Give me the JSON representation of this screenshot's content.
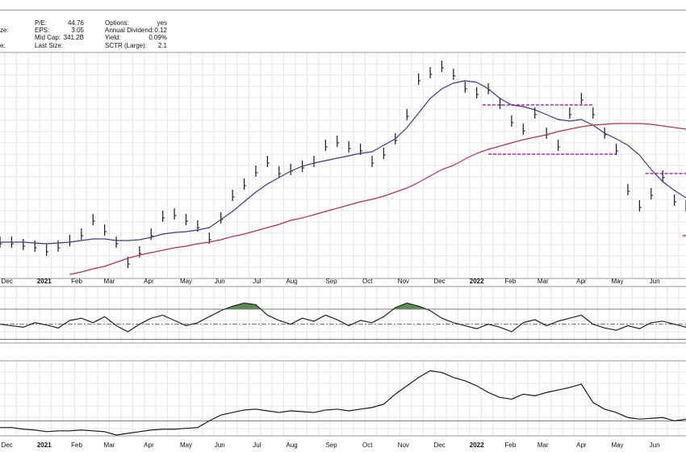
{
  "header": {
    "fields": [
      {
        "label": "P/E:",
        "value": "44.76"
      },
      {
        "label": "Options:",
        "value": "yes"
      },
      {
        "label": "EPS:",
        "value": "3.05"
      },
      {
        "label": "Annual Dividend:",
        "value": "0.12"
      },
      {
        "label": "Mid Cap:",
        "value": "341.2B"
      },
      {
        "label": "Yield:",
        "value": "0.09%"
      },
      {
        "label": "Last Size:",
        "value": ""
      },
      {
        "label": "SCTR (Large):",
        "value": "2.1"
      }
    ],
    "clipped": [
      "ze:",
      "e:"
    ]
  },
  "chart_data": [
    {
      "type": "line",
      "xlim": [
        0,
        59
      ],
      "ylim": [
        0,
        280
      ],
      "xticks": [
        {
          "value": 0.6,
          "label": "Dec"
        },
        {
          "value": 3.8,
          "label": "2021"
        },
        {
          "value": 6.6,
          "label": "Feb"
        },
        {
          "value": 9.4,
          "label": "Mar"
        },
        {
          "value": 12.8,
          "label": "Apr"
        },
        {
          "value": 16,
          "label": "May"
        },
        {
          "value": 18.9,
          "label": "Jun"
        },
        {
          "value": 22.1,
          "label": "Jul"
        },
        {
          "value": 25.1,
          "label": "Aug"
        },
        {
          "value": 28.5,
          "label": "Sep"
        },
        {
          "value": 31.6,
          "label": "Oct"
        },
        {
          "value": 34.7,
          "label": "Nov"
        },
        {
          "value": 37.8,
          "label": "Dec"
        },
        {
          "value": 41,
          "label": "2022"
        },
        {
          "value": 43.9,
          "label": "Feb"
        },
        {
          "value": 46.7,
          "label": "Mar"
        },
        {
          "value": 50,
          "label": "Apr"
        },
        {
          "value": 53.1,
          "label": "May"
        },
        {
          "value": 56.3,
          "label": "Jun"
        }
      ],
      "series": [
        {
          "style": "bars",
          "color": "#1a1a1a",
          "values": [
            45,
            45,
            42,
            40,
            35,
            40,
            47,
            55,
            73,
            60,
            45,
            20,
            33,
            55,
            77,
            80,
            73,
            65,
            50,
            75,
            103,
            117,
            133,
            145,
            132,
            135,
            139,
            145,
            165,
            170,
            163,
            160,
            145,
            155,
            173,
            203,
            247,
            255,
            263,
            253,
            237,
            230,
            235,
            217,
            195,
            185,
            205,
            180,
            165,
            205,
            223,
            205,
            180,
            160,
            110,
            90,
            105,
            127,
            97,
            90
          ]
        },
        {
          "style": "line",
          "color": "#3b3b8f",
          "values": [
            45,
            45,
            45,
            44,
            43,
            44,
            45,
            47,
            49,
            49,
            47,
            47,
            48,
            51,
            55,
            57,
            58,
            60,
            63,
            73,
            83,
            95,
            107,
            117,
            125,
            133,
            139,
            143,
            146,
            149,
            152,
            155,
            157,
            165,
            173,
            187,
            205,
            223,
            235,
            242,
            245,
            243,
            235,
            223,
            215,
            213,
            209,
            203,
            197,
            195,
            197,
            190,
            180,
            173,
            165,
            153,
            135,
            120,
            109,
            100
          ]
        },
        {
          "style": "line",
          "color": "#b83048",
          "values": [
            null,
            null,
            null,
            null,
            null,
            null,
            5,
            8,
            12,
            15,
            20,
            25,
            29,
            32,
            35,
            38,
            40,
            43,
            45,
            48,
            52,
            55,
            59,
            63,
            67,
            72,
            75,
            79,
            83,
            87,
            91,
            95,
            98,
            102,
            107,
            112,
            119,
            127,
            135,
            140,
            148,
            155,
            160,
            164,
            168,
            172,
            175,
            178,
            182,
            185,
            188,
            190,
            191,
            192,
            192,
            192,
            191,
            189,
            187,
            185
          ]
        }
      ],
      "levels": {
        "color": "#c01cc0",
        "items": [
          {
            "value": 215,
            "start": 41.5,
            "end": 51
          },
          {
            "value": 154,
            "start": 42,
            "end": 53
          },
          {
            "value": 130,
            "start": 55.5,
            "end": 59
          },
          {
            "value": 53,
            "start": 58.7,
            "end": 59
          }
        ]
      }
    },
    {
      "type": "line",
      "xlim": [
        0,
        59
      ],
      "ylim": [
        25,
        100
      ],
      "ref_lines": [
        30,
        50,
        70
      ],
      "fill_above": 70,
      "fill_color": "#5e8a56",
      "series": [
        {
          "style": "line",
          "color": "#222222",
          "values": [
            50,
            48,
            46,
            52,
            49,
            45,
            55,
            58,
            52,
            60,
            48,
            40,
            50,
            58,
            62,
            55,
            48,
            52,
            60,
            68,
            74,
            78,
            76,
            62,
            55,
            50,
            58,
            54,
            62,
            56,
            48,
            55,
            52,
            60,
            72,
            78,
            74,
            68,
            58,
            52,
            48,
            44,
            50,
            46,
            40,
            52,
            56,
            48,
            54,
            58,
            62,
            50,
            45,
            42,
            48,
            44,
            52,
            54,
            50,
            46
          ]
        }
      ]
    },
    {
      "type": "line",
      "xlim": [
        0,
        59
      ],
      "ylim": [
        0,
        90
      ],
      "ref_lines": [
        18
      ],
      "xticks": [
        {
          "value": 0.6,
          "label": "Dec"
        },
        {
          "value": 3.8,
          "label": "2021"
        },
        {
          "value": 6.6,
          "label": "Feb"
        },
        {
          "value": 9.4,
          "label": "Mar"
        },
        {
          "value": 12.8,
          "label": "Apr"
        },
        {
          "value": 16,
          "label": "May"
        },
        {
          "value": 18.9,
          "label": "Jun"
        },
        {
          "value": 22.1,
          "label": "Jul"
        },
        {
          "value": 25.1,
          "label": "Aug"
        },
        {
          "value": 28.5,
          "label": "Sep"
        },
        {
          "value": 31.6,
          "label": "Oct"
        },
        {
          "value": 34.7,
          "label": "Nov"
        },
        {
          "value": 37.8,
          "label": "Dec"
        },
        {
          "value": 41,
          "label": "2022"
        },
        {
          "value": 43.9,
          "label": "Feb"
        },
        {
          "value": 46.7,
          "label": "Mar"
        },
        {
          "value": 50,
          "label": "Apr"
        },
        {
          "value": 53.1,
          "label": "May"
        },
        {
          "value": 56.3,
          "label": "Jun"
        }
      ],
      "series": [
        {
          "style": "line",
          "color": "#1a1a1a",
          "values": [
            10,
            10,
            8,
            7,
            5,
            6,
            6,
            7,
            6,
            5,
            1,
            3,
            5,
            7,
            8,
            8,
            9,
            10,
            18,
            25,
            28,
            31,
            32,
            30,
            28,
            30,
            29,
            28,
            31,
            32,
            30,
            32,
            34,
            38,
            50,
            60,
            70,
            78,
            76,
            70,
            66,
            60,
            52,
            46,
            44,
            50,
            48,
            52,
            55,
            58,
            62,
            40,
            32,
            28,
            22,
            20,
            21,
            22,
            18,
            20
          ]
        }
      ]
    }
  ]
}
